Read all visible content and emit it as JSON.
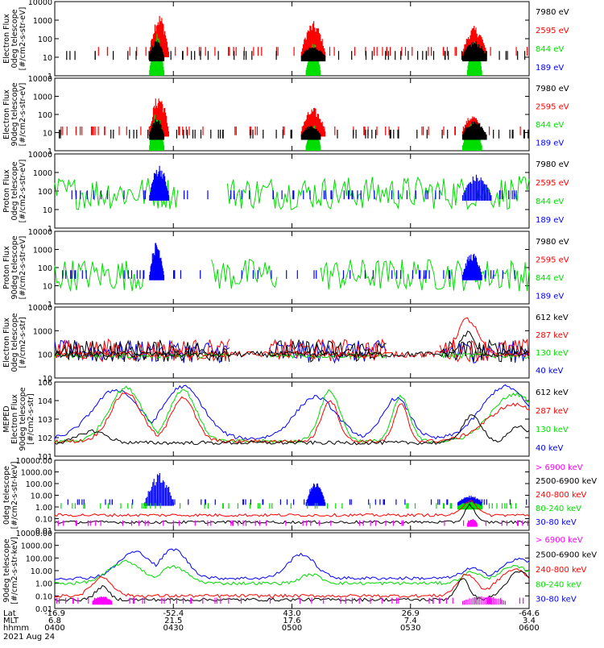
{
  "colors": {
    "black": "#000000",
    "red": "#ff0000",
    "green": "#00dd00",
    "blue": "#0000ff",
    "magenta": "#ff00ff"
  },
  "footer": {
    "row_labels": [
      "Lat",
      "MLT",
      "hhmm",
      "2021 Aug 24"
    ],
    "lat_values": [
      "-16.9",
      "-52.4",
      "43.0",
      "26.9",
      "-64.6"
    ],
    "mlt_values": [
      "6.8",
      "21.5",
      "17.6",
      "7.4",
      "3.4"
    ],
    "time_values": [
      "0400",
      "0430",
      "0500",
      "0530",
      "0600"
    ]
  },
  "chart_data": [
    {
      "type": "line",
      "scale": "log",
      "ylabel": [
        "Electron Flux",
        "0deg telescope",
        "[#/cm2-s-str-eV]"
      ],
      "yticks": [
        "10000",
        "1000",
        "100",
        "10",
        "1"
      ],
      "ylim": [
        1,
        10000
      ],
      "legend": [
        {
          "label": "7980 eV",
          "color": "#000000"
        },
        {
          "label": "2595 eV",
          "color": "#ff0000"
        },
        {
          "label": "844 eV",
          "color": "#00dd00"
        },
        {
          "label": "189 eV",
          "color": "#0000ff"
        }
      ],
      "series": [
        {
          "color": "#ff0000",
          "mode": "segments",
          "base": 20,
          "bursts": [
            [
              0.2,
              0.24,
              2500
            ],
            [
              0.52,
              0.57,
              900
            ],
            [
              0.86,
              0.91,
              500
            ]
          ]
        },
        {
          "color": "#00dd00",
          "mode": "segments",
          "base": 0,
          "bursts": [
            [
              0.2,
              0.23,
              200
            ],
            [
              0.53,
              0.56,
              60
            ],
            [
              0.87,
              0.9,
              120
            ]
          ]
        },
        {
          "color": "#000000",
          "mode": "segments",
          "base": 12,
          "bursts": [
            [
              0.2,
              0.23,
              100
            ],
            [
              0.52,
              0.57,
              40
            ],
            [
              0.86,
              0.91,
              80
            ]
          ]
        }
      ]
    },
    {
      "type": "line",
      "scale": "log",
      "ylabel": [
        "Electron Flux",
        "90deg telescope",
        "[#/cm2-s-str-eV]"
      ],
      "yticks": [
        "10000",
        "1000",
        "100",
        "10",
        "1"
      ],
      "ylim": [
        1,
        10000
      ],
      "legend": [
        {
          "label": "7980 eV",
          "color": "#000000"
        },
        {
          "label": "2595 eV",
          "color": "#ff0000"
        },
        {
          "label": "844 eV",
          "color": "#00dd00"
        },
        {
          "label": "189 eV",
          "color": "#0000ff"
        }
      ],
      "series": [
        {
          "color": "#ff0000",
          "mode": "segments",
          "base": 12,
          "bursts": [
            [
              0.2,
              0.24,
              1500
            ],
            [
              0.52,
              0.57,
              250
            ],
            [
              0.86,
              0.9,
              100
            ]
          ]
        },
        {
          "color": "#00dd00",
          "mode": "segments",
          "base": 0,
          "bursts": [
            [
              0.2,
              0.23,
              150
            ],
            [
              0.53,
              0.56,
              30
            ],
            [
              0.86,
              0.9,
              40
            ]
          ]
        },
        {
          "color": "#000000",
          "mode": "segments",
          "base": 8,
          "bursts": [
            [
              0.2,
              0.23,
              60
            ],
            [
              0.52,
              0.56,
              25
            ],
            [
              0.86,
              0.91,
              50
            ]
          ]
        }
      ]
    },
    {
      "type": "line",
      "scale": "log",
      "ylabel": [
        "Proton Flux",
        "0deg telescope",
        "[#/cm2-s-str-eV]"
      ],
      "yticks": [
        "10000",
        "1000",
        "100",
        "10",
        "1"
      ],
      "ylim": [
        1,
        10000
      ],
      "legend": [
        {
          "label": "7980 eV",
          "color": "#000000"
        },
        {
          "label": "2595 eV",
          "color": "#ff0000"
        },
        {
          "label": "844 eV",
          "color": "#00dd00"
        },
        {
          "label": "189 eV",
          "color": "#0000ff"
        }
      ],
      "series": [
        {
          "color": "#00dd00",
          "mode": "noise",
          "level": 80,
          "spread": 8,
          "gaps": [
            [
              0.26,
              0.35
            ],
            [
              0.35,
              0.36
            ]
          ]
        },
        {
          "color": "#0000ff",
          "mode": "segments",
          "base": 60,
          "bursts": [
            [
              0.2,
              0.24,
              3000
            ],
            [
              0.86,
              0.92,
              800
            ]
          ]
        }
      ]
    },
    {
      "type": "line",
      "scale": "log",
      "ylabel": [
        "Proton Flux",
        "90deg telescope",
        "[#/cm2-s-str-eV]"
      ],
      "yticks": [
        "10000",
        "1000",
        "100",
        "10",
        "1"
      ],
      "ylim": [
        1,
        10000
      ],
      "legend": [
        {
          "label": "7980 eV",
          "color": "#000000"
        },
        {
          "label": "2595 eV",
          "color": "#ff0000"
        },
        {
          "label": "844 eV",
          "color": "#00dd00"
        },
        {
          "label": "189 eV",
          "color": "#0000ff"
        }
      ],
      "series": [
        {
          "color": "#00dd00",
          "mode": "noise",
          "level": 40,
          "spread": 8,
          "gaps": [
            [
              0.19,
              0.33
            ],
            [
              0.47,
              0.56
            ]
          ]
        },
        {
          "color": "#0000ff",
          "mode": "segments",
          "base": 40,
          "bursts": [
            [
              0.2,
              0.23,
              3000
            ],
            [
              0.86,
              0.9,
              700
            ]
          ]
        }
      ]
    },
    {
      "type": "line",
      "scale": "log",
      "ylabel": [
        "Electron Flux",
        "0deg telescope",
        "[#/cm2-s-str]"
      ],
      "yticks": [
        "10000",
        "1000",
        "100",
        "10"
      ],
      "ylim": [
        10,
        10000
      ],
      "legend": [
        {
          "label": "612 keV",
          "color": "#000000"
        },
        {
          "label": "287 keV",
          "color": "#ff0000"
        },
        {
          "label": "130 keV",
          "color": "#00dd00"
        },
        {
          "label": "40 keV",
          "color": "#0000ff"
        }
      ],
      "series": [
        {
          "color": "#0000ff",
          "mode": "noise",
          "level": 130,
          "spread": 3,
          "gaps": [
            [
              0.37,
              0.45
            ],
            [
              0.7,
              0.81
            ]
          ]
        },
        {
          "color": "#ff0000",
          "mode": "noise",
          "level": 150,
          "spread": 3,
          "gaps": [
            [
              0.37,
              0.45
            ],
            [
              0.7,
              0.81
            ]
          ]
        },
        {
          "color": "#000000",
          "mode": "noise",
          "level": 140,
          "spread": 3,
          "gaps": [
            [
              0.37,
              0.45
            ],
            [
              0.7,
              0.81
            ]
          ]
        },
        {
          "color": "#00dd00",
          "mode": "noise",
          "level": 90,
          "spread": 1.3,
          "gaps": [
            [
              0.37,
              0.45
            ],
            [
              0.7,
              0.81
            ]
          ]
        },
        {
          "color": "#ff0000",
          "mode": "hump",
          "peak": 3000,
          "center": 0.87,
          "width": 0.03,
          "floor": 100
        },
        {
          "color": "#000000",
          "mode": "hump",
          "peak": 800,
          "center": 0.87,
          "width": 0.02,
          "floor": 100
        }
      ]
    },
    {
      "type": "line",
      "scale": "log",
      "ylabel": [
        "MEPED",
        "Electron Flux",
        "90deg telescope",
        "[#/cm2-s-str]"
      ],
      "yticks": [
        "10^6",
        "10^4",
        "10^3",
        "10^2",
        "10^1"
      ],
      "ylim": [
        10,
        1000000
      ],
      "legend": [
        {
          "label": "612 keV",
          "color": "#000000"
        },
        {
          "label": "287 keV",
          "color": "#ff0000"
        },
        {
          "label": "130 keV",
          "color": "#00dd00"
        },
        {
          "label": "40 keV",
          "color": "#0000ff"
        }
      ],
      "series": [
        {
          "color": "#0000ff",
          "mode": "humps",
          "floor": 150,
          "humps": [
            [
              0.13,
              0.07,
              300000
            ],
            [
              0.27,
              0.06,
              500000
            ],
            [
              0.55,
              0.06,
              100000
            ],
            [
              0.72,
              0.04,
              80000
            ],
            [
              0.95,
              0.07,
              500000
            ]
          ]
        },
        {
          "color": "#00dd00",
          "mode": "humps",
          "floor": 100,
          "humps": [
            [
              0.15,
              0.05,
              400000
            ],
            [
              0.27,
              0.04,
              300000
            ],
            [
              0.58,
              0.03,
              250000
            ],
            [
              0.73,
              0.025,
              100000
            ],
            [
              0.97,
              0.07,
              150000
            ]
          ]
        },
        {
          "color": "#ff0000",
          "mode": "humps",
          "floor": 100,
          "humps": [
            [
              0.15,
              0.045,
              200000
            ],
            [
              0.27,
              0.035,
              100000
            ],
            [
              0.58,
              0.025,
              60000
            ],
            [
              0.73,
              0.02,
              30000
            ],
            [
              0.97,
              0.08,
              30000
            ]
          ]
        },
        {
          "color": "#000000",
          "mode": "humps",
          "floor": 80,
          "humps": [
            [
              0.08,
              0.04,
              500
            ],
            [
              0.88,
              0.03,
              5000
            ],
            [
              0.98,
              0.03,
              1000
            ]
          ]
        }
      ]
    },
    {
      "type": "line",
      "scale": "log",
      "ylabel": [
        "0deg telescope",
        "[#/cm2-s-str-keV]"
      ],
      "yticks": [
        "10000.00",
        "1000.00",
        "100.00",
        "10.00",
        "1.00",
        "0.10",
        "0.01"
      ],
      "ylim": [
        0.01,
        10000
      ],
      "legend": [
        {
          "label": "> 6900 keV",
          "color": "#ff00ff"
        },
        {
          "label": "2500-6900 keV",
          "color": "#000000"
        },
        {
          "label": "240-800 keV",
          "color": "#ff0000"
        },
        {
          "label": "80-240 keV",
          "color": "#00dd00"
        },
        {
          "label": "30-80 keV",
          "color": "#0000ff"
        }
      ],
      "series": [
        {
          "color": "#0000ff",
          "mode": "segments",
          "base": 2.5,
          "bursts": [
            [
              0.19,
              0.25,
              800
            ],
            [
              0.53,
              0.57,
              150
            ],
            [
              0.85,
              0.9,
              10
            ]
          ]
        },
        {
          "color": "#00dd00",
          "mode": "segments",
          "base": 1.2,
          "bursts": [
            [
              0.85,
              0.9,
              3
            ]
          ]
        },
        {
          "color": "#ff0000",
          "mode": "hump",
          "peak": 4,
          "center": 0.875,
          "width": 0.02,
          "floor": 0.2
        },
        {
          "color": "#000000",
          "mode": "hump",
          "peak": 1.5,
          "center": 0.875,
          "width": 0.015,
          "floor": 0.05
        },
        {
          "color": "#ff00ff",
          "mode": "segments",
          "base": 0.04,
          "bursts": [
            [
              0.87,
              0.89,
              0.1
            ]
          ]
        }
      ]
    },
    {
      "type": "line",
      "scale": "log",
      "ylabel": [
        "90deg telescope",
        "[#/cm2-s-str-keV]"
      ],
      "yticks": [
        "10000.00",
        "1000.00",
        "100.00",
        "10.00",
        "1.00",
        "0.10",
        "0.01"
      ],
      "ylim": [
        0.01,
        10000
      ],
      "legend": [
        {
          "label": "> 6900 keV",
          "color": "#ff00ff"
        },
        {
          "label": "2500-6900 keV",
          "color": "#000000"
        },
        {
          "label": "240-800 keV",
          "color": "#ff0000"
        },
        {
          "label": "80-240 keV",
          "color": "#00dd00"
        },
        {
          "label": "30-80 keV",
          "color": "#0000ff"
        }
      ],
      "series": [
        {
          "color": "#0000ff",
          "mode": "humps",
          "floor": 2.5,
          "humps": [
            [
              0.17,
              0.05,
              300
            ],
            [
              0.25,
              0.04,
              500
            ],
            [
              0.52,
              0.04,
              200
            ],
            [
              0.88,
              0.03,
              15
            ],
            [
              0.98,
              0.05,
              80
            ]
          ]
        },
        {
          "color": "#00dd00",
          "mode": "humps",
          "floor": 1,
          "humps": [
            [
              0.15,
              0.05,
              50
            ],
            [
              0.25,
              0.04,
              20
            ],
            [
              0.54,
              0.03,
              5
            ],
            [
              0.88,
              0.03,
              8
            ],
            [
              0.97,
              0.05,
              20
            ]
          ]
        },
        {
          "color": "#ff0000",
          "mode": "humps",
          "floor": 0.1,
          "humps": [
            [
              0.1,
              0.03,
              3
            ],
            [
              0.87,
              0.03,
              5
            ],
            [
              0.97,
              0.05,
              12
            ]
          ]
        },
        {
          "color": "#000000",
          "mode": "humps",
          "floor": 0.05,
          "humps": [
            [
              0.1,
              0.02,
              0.5
            ],
            [
              0.86,
              0.02,
              2
            ],
            [
              0.98,
              0.04,
              8
            ]
          ]
        },
        {
          "color": "#ff00ff",
          "mode": "segments",
          "base": 0.04,
          "bursts": [
            [
              0.08,
              0.12,
              0.1
            ],
            [
              0.86,
              0.95,
              0.1
            ]
          ]
        }
      ]
    }
  ]
}
